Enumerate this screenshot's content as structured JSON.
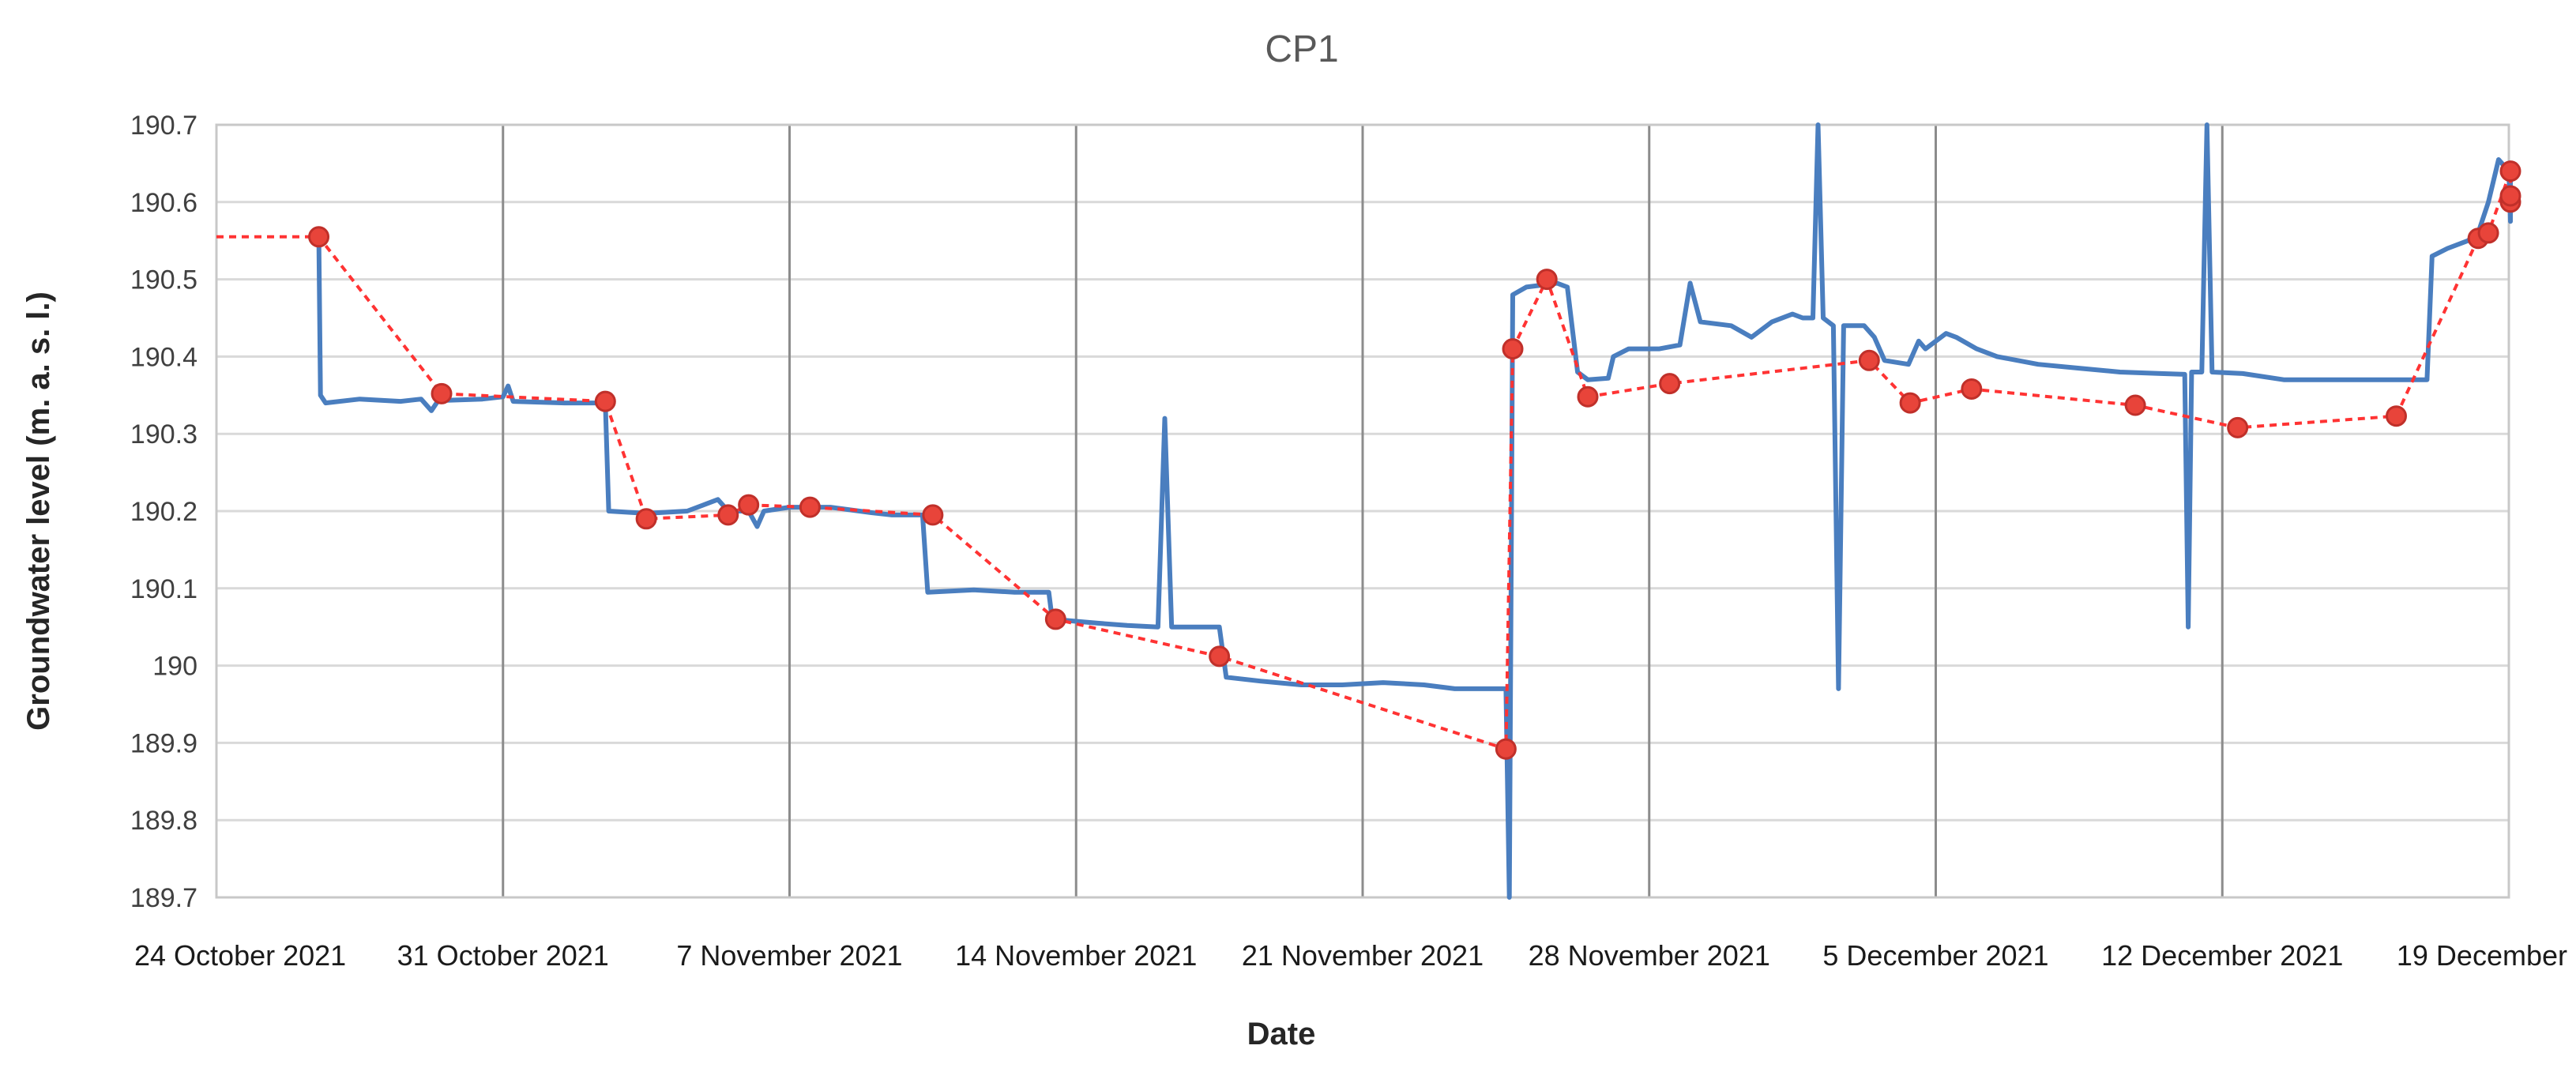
{
  "chart_data": {
    "type": "line",
    "title": "CP1",
    "xlabel": "Date",
    "ylabel": "Groundwater level (m. a. s. l.)",
    "x_axis": {
      "type": "date",
      "range": [
        "2021-10-24",
        "2021-12-19"
      ],
      "tick_labels": [
        "24 October 2021",
        "31 October 2021",
        "7 November 2021",
        "14 November 2021",
        "21 November 2021",
        "28 November  2021",
        "5 December 2021",
        "12 December 2021",
        "19 December"
      ]
    },
    "y_axis": {
      "range": [
        189.7,
        190.7
      ],
      "tick_labels": [
        "190.7",
        "190.6",
        "190.5",
        "190.4",
        "190.3",
        "190.2",
        "190.1",
        "190",
        "189.9",
        "189.8",
        "189.7"
      ]
    },
    "grid": {
      "horizontal": true,
      "vertical": true
    },
    "legend": "none",
    "colors": {
      "continuous": "#4a7ebf",
      "manual": "#e8443a",
      "manual_line": "#ff3333"
    },
    "series": [
      {
        "style": "solid",
        "color": "#4a7ebf",
        "points": [
          [
            "2021-10-26T12:00",
            190.555
          ],
          [
            "2021-10-26T13:00",
            190.35
          ],
          [
            "2021-10-26T16:00",
            190.34
          ],
          [
            "2021-10-27T12:00",
            190.345
          ],
          [
            "2021-10-28T12:00",
            190.342
          ],
          [
            "2021-10-29T00:00",
            190.345
          ],
          [
            "2021-10-29T06:00",
            190.33
          ],
          [
            "2021-10-29T10:00",
            190.343
          ],
          [
            "2021-10-30T12:00",
            190.345
          ],
          [
            "2021-10-31T00:00",
            190.348
          ],
          [
            "2021-10-31T03:00",
            190.362
          ],
          [
            "2021-10-31T06:00",
            190.342
          ],
          [
            "2021-11-01T12:00",
            190.34
          ],
          [
            "2021-11-02T12:00",
            190.34
          ],
          [
            "2021-11-02T14:00",
            190.2
          ],
          [
            "2021-11-03T12:00",
            190.197
          ],
          [
            "2021-11-04T12:00",
            190.2
          ],
          [
            "2021-11-05T00:00",
            190.21
          ],
          [
            "2021-11-05T06:00",
            190.215
          ],
          [
            "2021-11-05T12:00",
            190.2
          ],
          [
            "2021-11-06T00:00",
            190.2
          ],
          [
            "2021-11-06T05:00",
            190.18
          ],
          [
            "2021-11-06T09:00",
            190.2
          ],
          [
            "2021-11-07T00:00",
            190.205
          ],
          [
            "2021-11-08T00:00",
            190.205
          ],
          [
            "2021-11-09T00:00",
            190.198
          ],
          [
            "2021-11-09T12:00",
            190.195
          ],
          [
            "2021-11-10T06:00",
            190.195
          ],
          [
            "2021-11-10T09:00",
            190.095
          ],
          [
            "2021-11-11T12:00",
            190.098
          ],
          [
            "2021-11-12T12:00",
            190.095
          ],
          [
            "2021-11-13T08:00",
            190.095
          ],
          [
            "2021-11-13T10:00",
            190.06
          ],
          [
            "2021-11-14T12:00",
            190.055
          ],
          [
            "2021-11-15T06:00",
            190.052
          ],
          [
            "2021-11-16T00:00",
            190.05
          ],
          [
            "2021-11-16T04:00",
            190.32
          ],
          [
            "2021-11-16T08:00",
            190.05
          ],
          [
            "2021-11-17T06:00",
            190.05
          ],
          [
            "2021-11-17T12:00",
            190.05
          ],
          [
            "2021-11-17T16:00",
            189.985
          ],
          [
            "2021-11-18T12:00",
            189.98
          ],
          [
            "2021-11-19T12:00",
            189.975
          ],
          [
            "2021-11-20T12:00",
            189.975
          ],
          [
            "2021-11-21T12:00",
            189.978
          ],
          [
            "2021-11-22T12:00",
            189.975
          ],
          [
            "2021-11-23T06:00",
            189.97
          ],
          [
            "2021-11-23T10:00",
            189.97
          ],
          [
            "2021-11-24T12:00",
            189.97
          ],
          [
            "2021-11-24T14:00",
            189.7
          ],
          [
            "2021-11-24T16:00",
            190.48
          ],
          [
            "2021-11-25T00:00",
            190.49
          ],
          [
            "2021-11-25T18:00",
            190.495
          ],
          [
            "2021-11-26T00:00",
            190.49
          ],
          [
            "2021-11-26T06:00",
            190.38
          ],
          [
            "2021-11-26T12:00",
            190.37
          ],
          [
            "2021-11-27T00:00",
            190.372
          ],
          [
            "2021-11-27T03:00",
            190.4
          ],
          [
            "2021-11-27T12:00",
            190.41
          ],
          [
            "2021-11-28T06:00",
            190.41
          ],
          [
            "2021-11-28T18:00",
            190.415
          ],
          [
            "2021-11-29T00:00",
            190.495
          ],
          [
            "2021-11-29T06:00",
            190.445
          ],
          [
            "2021-11-30T00:00",
            190.44
          ],
          [
            "2021-11-30T12:00",
            190.425
          ],
          [
            "2021-12-01T00:00",
            190.445
          ],
          [
            "2021-12-01T12:00",
            190.455
          ],
          [
            "2021-12-01T18:00",
            190.45
          ],
          [
            "2021-12-02T00:00",
            190.45
          ],
          [
            "2021-12-02T03:00",
            190.7
          ],
          [
            "2021-12-02T06:00",
            190.45
          ],
          [
            "2021-12-02T12:00",
            190.44
          ],
          [
            "2021-12-02T15:00",
            189.97
          ],
          [
            "2021-12-02T18:00",
            190.44
          ],
          [
            "2021-12-03T06:00",
            190.44
          ],
          [
            "2021-12-03T12:00",
            190.425
          ],
          [
            "2021-12-03T18:00",
            190.395
          ],
          [
            "2021-12-04T08:00",
            190.39
          ],
          [
            "2021-12-04T14:00",
            190.42
          ],
          [
            "2021-12-04T18:00",
            190.41
          ],
          [
            "2021-12-05T06:00",
            190.43
          ],
          [
            "2021-12-05T12:00",
            190.425
          ],
          [
            "2021-12-06T00:00",
            190.41
          ],
          [
            "2021-12-06T12:00",
            190.4
          ],
          [
            "2021-12-07T12:00",
            190.39
          ],
          [
            "2021-12-08T12:00",
            190.385
          ],
          [
            "2021-12-09T12:00",
            190.38
          ],
          [
            "2021-12-10T12:00",
            190.378
          ],
          [
            "2021-12-11T02:00",
            190.377
          ],
          [
            "2021-12-11T04:00",
            190.05
          ],
          [
            "2021-12-11T06:00",
            190.38
          ],
          [
            "2021-12-11T12:00",
            190.38
          ],
          [
            "2021-12-11T15:00",
            190.7
          ],
          [
            "2021-12-11T18:00",
            190.38
          ],
          [
            "2021-12-12T12:00",
            190.378
          ],
          [
            "2021-12-13T12:00",
            190.37
          ],
          [
            "2021-12-14T12:00",
            190.37
          ],
          [
            "2021-12-15T12:00",
            190.37
          ],
          [
            "2021-12-16T12:00",
            190.37
          ],
          [
            "2021-12-17T00:00",
            190.37
          ],
          [
            "2021-12-17T03:00",
            190.53
          ],
          [
            "2021-12-17T12:00",
            190.54
          ],
          [
            "2021-12-18T00:00",
            190.55
          ],
          [
            "2021-12-18T06:00",
            190.56
          ],
          [
            "2021-12-18T12:00",
            190.6
          ],
          [
            "2021-12-18T18:00",
            190.655
          ],
          [
            "2021-12-19T00:00",
            190.64
          ],
          [
            "2021-12-19T03:00",
            190.575
          ],
          [
            "2021-12-19T09:00",
            190.58
          ],
          [
            "2021-12-19T15:00",
            190.6
          ],
          [
            "2021-12-19T20:00",
            190.63
          ],
          [
            "2021-12-19T23:00",
            190.6
          ],
          [
            "2021-12-20T06:00",
            190.605
          ],
          [
            "2021-12-20T12:00",
            190.595
          ]
        ]
      },
      {
        "style": "dotted-with-markers",
        "color": "#e8443a",
        "points": [
          [
            "2021-10-24T00:00",
            190.555
          ],
          [
            "2021-10-26T12:00",
            190.555
          ],
          [
            "2021-10-29T12:00",
            190.352
          ],
          [
            "2021-11-02T12:00",
            190.342
          ],
          [
            "2021-11-03T12:00",
            190.19
          ],
          [
            "2021-11-05T12:00",
            190.195
          ],
          [
            "2021-11-06T00:00",
            190.208
          ],
          [
            "2021-11-07T12:00",
            190.205
          ],
          [
            "2021-11-10T12:00",
            190.195
          ],
          [
            "2021-11-13T12:00",
            190.06
          ],
          [
            "2021-11-17T12:00",
            190.012
          ],
          [
            "2021-11-24T12:00",
            189.892
          ],
          [
            "2021-11-24T16:00",
            190.41
          ],
          [
            "2021-11-25T12:00",
            190.5
          ],
          [
            "2021-11-26T12:00",
            190.348
          ],
          [
            "2021-11-28T12:00",
            190.365
          ],
          [
            "2021-12-03T09:00",
            190.395
          ],
          [
            "2021-12-04T09:00",
            190.34
          ],
          [
            "2021-12-05T21:00",
            190.358
          ],
          [
            "2021-12-09T21:00",
            190.337
          ],
          [
            "2021-12-12T09:00",
            190.308
          ],
          [
            "2021-12-16T06:00",
            190.323
          ],
          [
            "2021-12-18T06:00",
            190.553
          ],
          [
            "2021-12-18T12:00",
            190.56
          ],
          [
            "2021-12-19T06:00",
            190.64
          ],
          [
            "2021-12-19T18:00",
            190.6
          ],
          [
            "2021-12-20T09:00",
            190.608
          ]
        ]
      }
    ]
  }
}
